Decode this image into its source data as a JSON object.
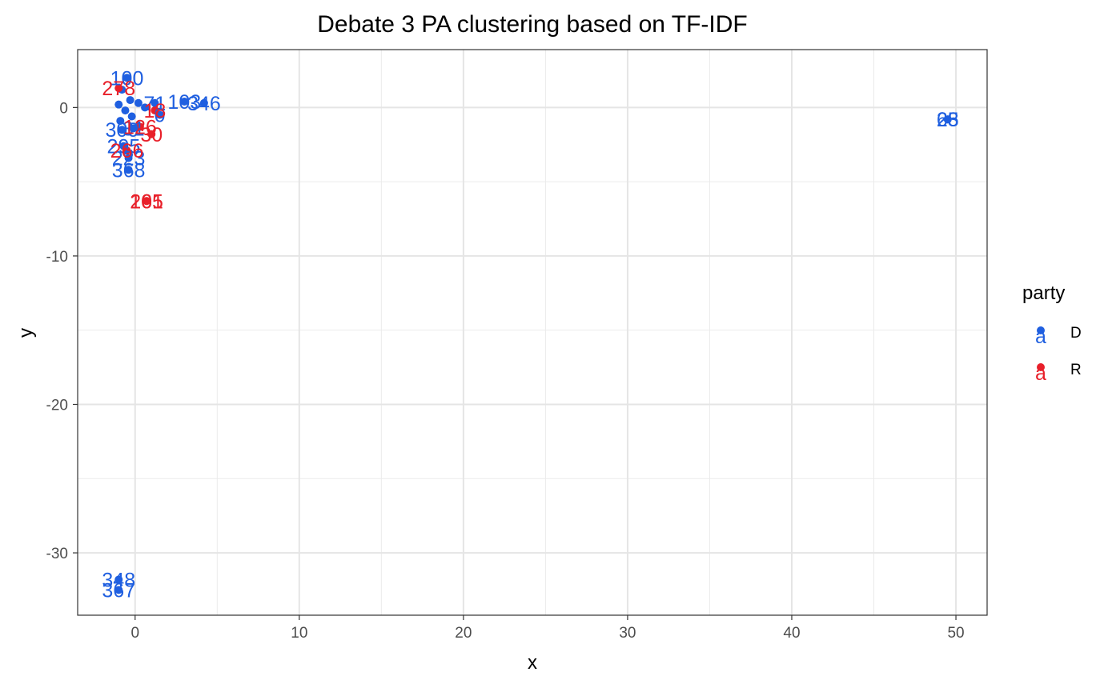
{
  "chart_data": {
    "type": "scatter",
    "title": "Debate 3 PA clustering based on TF-IDF",
    "xlabel": "x",
    "ylabel": "y",
    "xlim": [
      -3.5,
      51.9
    ],
    "ylim": [
      -34.2,
      3.9
    ],
    "x_ticks": [
      0,
      10,
      20,
      30,
      40,
      50
    ],
    "y_ticks": [
      0,
      -10,
      -20,
      -30
    ],
    "x_tick_labels": [
      "0",
      "10",
      "20",
      "30",
      "40",
      "50"
    ],
    "y_tick_labels": [
      "0",
      "-10",
      "-20",
      "-30"
    ],
    "grid": true,
    "legend": {
      "title": "party",
      "position": "right",
      "entries": [
        {
          "name": "D",
          "color": "#1f5fe0"
        },
        {
          "name": "R",
          "color": "#e8202a"
        }
      ]
    },
    "series": [
      {
        "name": "D",
        "color": "#1f5fe0",
        "points": [
          {
            "x": -0.5,
            "y": 2.0,
            "label": "100"
          },
          {
            "x": -0.8,
            "y": 1.2,
            "label": ""
          },
          {
            "x": -0.3,
            "y": 0.5,
            "label": ""
          },
          {
            "x": -1.0,
            "y": 0.2,
            "label": ""
          },
          {
            "x": -0.6,
            "y": -0.2,
            "label": ""
          },
          {
            "x": 0.2,
            "y": 0.3,
            "label": ""
          },
          {
            "x": -0.2,
            "y": -0.6,
            "label": ""
          },
          {
            "x": 0.6,
            "y": 0.0,
            "label": ""
          },
          {
            "x": -0.9,
            "y": -0.9,
            "label": ""
          },
          {
            "x": 1.2,
            "y": 0.3,
            "label": "71"
          },
          {
            "x": 3.0,
            "y": 0.4,
            "label": "103"
          },
          {
            "x": 4.2,
            "y": 0.3,
            "label": "346"
          },
          {
            "x": 1.5,
            "y": -0.5,
            "label": "0"
          },
          {
            "x": -0.8,
            "y": -1.5,
            "label": "300"
          },
          {
            "x": -0.1,
            "y": -1.4,
            "label": "31"
          },
          {
            "x": -0.7,
            "y": -2.6,
            "label": "295"
          },
          {
            "x": -0.4,
            "y": -3.4,
            "label": "223"
          },
          {
            "x": -0.4,
            "y": -4.2,
            "label": "368"
          },
          {
            "x": 49.5,
            "y": -0.8,
            "label": "65"
          },
          {
            "x": 49.5,
            "y": -0.8,
            "label": "23"
          },
          {
            "x": -1.0,
            "y": -31.8,
            "label": "348"
          },
          {
            "x": -1.0,
            "y": -32.5,
            "label": "367"
          }
        ]
      },
      {
        "name": "R",
        "color": "#e8202a",
        "points": [
          {
            "x": -1.0,
            "y": 1.3,
            "label": "278"
          },
          {
            "x": 1.2,
            "y": -0.2,
            "label": "18"
          },
          {
            "x": 0.3,
            "y": -1.3,
            "label": "126"
          },
          {
            "x": 1.0,
            "y": -1.8,
            "label": "30"
          },
          {
            "x": -0.5,
            "y": -2.9,
            "label": "266"
          },
          {
            "x": 0.7,
            "y": -6.3,
            "label": "265"
          },
          {
            "x": 0.7,
            "y": -6.3,
            "label": "101"
          }
        ]
      }
    ]
  }
}
